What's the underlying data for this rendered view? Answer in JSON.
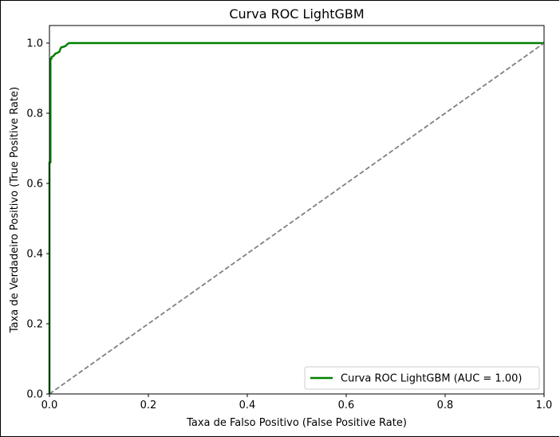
{
  "chart_data": {
    "type": "line",
    "title": "Curva ROC LightGBM",
    "xlabel": "Taxa de Falso Positivo (False Positive Rate)",
    "ylabel": "Taxa de Verdadeiro Positivo (True Positive Rate)",
    "xlim": [
      0.0,
      1.0
    ],
    "ylim": [
      0.0,
      1.05
    ],
    "xticks": [
      "0.0",
      "0.2",
      "0.4",
      "0.6",
      "0.8",
      "1.0"
    ],
    "yticks": [
      "0.0",
      "0.2",
      "0.4",
      "0.6",
      "0.8",
      "1.0"
    ],
    "grid": false,
    "legend_position": "lower-right",
    "series": [
      {
        "name": "Curva ROC LightGBM (AUC = 1.00)",
        "color": "#008000",
        "style": "solid",
        "x": [
          0.0,
          0.0,
          0.002,
          0.002,
          0.004,
          0.004,
          0.008,
          0.012,
          0.016,
          0.02,
          0.022,
          0.024,
          0.03,
          0.034,
          0.036,
          0.04,
          0.06,
          0.2,
          0.5,
          0.8,
          1.0
        ],
        "y": [
          0.0,
          0.66,
          0.66,
          0.955,
          0.955,
          0.96,
          0.963,
          0.97,
          0.972,
          0.975,
          0.983,
          0.988,
          0.99,
          0.993,
          0.997,
          1.0,
          1.0,
          1.0,
          1.0,
          1.0,
          1.0
        ]
      },
      {
        "name": "",
        "color": "#808080",
        "style": "dashed",
        "x": [
          0.0,
          1.0
        ],
        "y": [
          0.0,
          1.0
        ]
      }
    ]
  }
}
